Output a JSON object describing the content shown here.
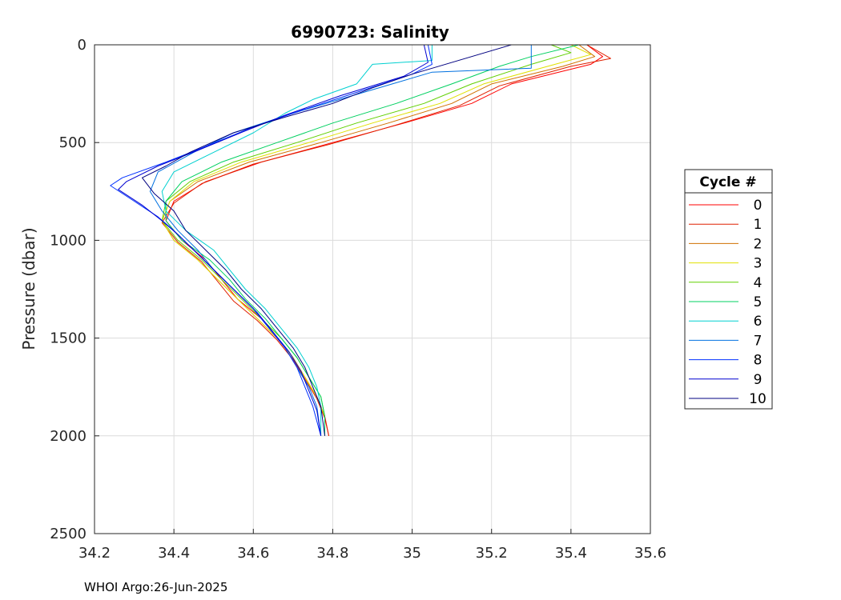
{
  "chart_data": {
    "type": "line",
    "title": "6990723:  Salinity",
    "xlabel": "",
    "ylabel": "Pressure (dbar)",
    "xlim": [
      34.2,
      35.6
    ],
    "ylim": [
      0,
      2500
    ],
    "y_reversed": true,
    "grid": true,
    "xticks": [
      "34.2",
      "34.4",
      "34.6",
      "34.8",
      "35",
      "35.2",
      "35.4",
      "35.6"
    ],
    "yticks": [
      "0",
      "500",
      "1000",
      "1500",
      "2000",
      "2500"
    ],
    "legend": {
      "title": "Cycle #",
      "placement": "right-outside"
    },
    "series": [
      {
        "name": "0",
        "color": "#ff0000",
        "points": [
          [
            35.44,
            0
          ],
          [
            35.48,
            60
          ],
          [
            35.45,
            100
          ],
          [
            35.25,
            200
          ],
          [
            35.15,
            300
          ],
          [
            34.98,
            400
          ],
          [
            34.8,
            500
          ],
          [
            34.62,
            600
          ],
          [
            34.48,
            700
          ],
          [
            34.4,
            800
          ],
          [
            34.38,
            900
          ],
          [
            34.42,
            1000
          ],
          [
            34.48,
            1100
          ],
          [
            34.52,
            1200
          ],
          [
            34.56,
            1300
          ],
          [
            34.62,
            1400
          ],
          [
            34.66,
            1500
          ],
          [
            34.7,
            1600
          ],
          [
            34.73,
            1700
          ],
          [
            34.76,
            1800
          ],
          [
            34.78,
            1900
          ],
          [
            34.79,
            2000
          ]
        ]
      },
      {
        "name": "1",
        "color": "#e02000",
        "points": [
          [
            35.44,
            0
          ],
          [
            35.5,
            70
          ],
          [
            35.4,
            110
          ],
          [
            35.22,
            210
          ],
          [
            35.12,
            310
          ],
          [
            34.96,
            410
          ],
          [
            34.79,
            510
          ],
          [
            34.6,
            610
          ],
          [
            34.47,
            710
          ],
          [
            34.4,
            810
          ],
          [
            34.37,
            910
          ],
          [
            34.41,
            1010
          ],
          [
            34.47,
            1110
          ],
          [
            34.51,
            1210
          ],
          [
            34.55,
            1310
          ],
          [
            34.61,
            1410
          ],
          [
            34.66,
            1510
          ],
          [
            34.7,
            1610
          ],
          [
            34.73,
            1710
          ],
          [
            34.76,
            1810
          ],
          [
            34.78,
            1910
          ],
          [
            34.79,
            2000
          ]
        ]
      },
      {
        "name": "2",
        "color": "#d07000",
        "points": [
          [
            35.42,
            0
          ],
          [
            35.46,
            60
          ],
          [
            35.38,
            110
          ],
          [
            35.2,
            200
          ],
          [
            35.1,
            300
          ],
          [
            34.94,
            400
          ],
          [
            34.77,
            500
          ],
          [
            34.59,
            600
          ],
          [
            34.46,
            700
          ],
          [
            34.39,
            800
          ],
          [
            34.37,
            900
          ],
          [
            34.4,
            1000
          ],
          [
            34.46,
            1100
          ],
          [
            34.51,
            1200
          ],
          [
            34.56,
            1300
          ],
          [
            34.61,
            1400
          ],
          [
            34.66,
            1500
          ],
          [
            34.7,
            1600
          ],
          [
            34.73,
            1700
          ],
          [
            34.76,
            1800
          ],
          [
            34.78,
            1900
          ],
          [
            34.78,
            2000
          ]
        ]
      },
      {
        "name": "3",
        "color": "#e0e000",
        "points": [
          [
            35.4,
            0
          ],
          [
            35.45,
            50
          ],
          [
            35.36,
            100
          ],
          [
            35.18,
            200
          ],
          [
            35.07,
            300
          ],
          [
            34.9,
            400
          ],
          [
            34.74,
            500
          ],
          [
            34.57,
            600
          ],
          [
            34.45,
            700
          ],
          [
            34.39,
            800
          ],
          [
            34.37,
            900
          ],
          [
            34.4,
            1000
          ],
          [
            34.46,
            1100
          ],
          [
            34.51,
            1200
          ],
          [
            34.56,
            1300
          ],
          [
            34.61,
            1400
          ],
          [
            34.66,
            1500
          ],
          [
            34.7,
            1600
          ],
          [
            34.73,
            1700
          ],
          [
            34.76,
            1800
          ],
          [
            34.78,
            1900
          ],
          [
            34.78,
            2000
          ]
        ]
      },
      {
        "name": "4",
        "color": "#60d000",
        "points": [
          [
            35.35,
            0
          ],
          [
            35.4,
            40
          ],
          [
            35.3,
            100
          ],
          [
            35.15,
            200
          ],
          [
            35.03,
            300
          ],
          [
            34.86,
            400
          ],
          [
            34.71,
            500
          ],
          [
            34.55,
            600
          ],
          [
            34.44,
            700
          ],
          [
            34.38,
            800
          ],
          [
            34.37,
            900
          ],
          [
            34.41,
            1000
          ],
          [
            34.47,
            1100
          ],
          [
            34.52,
            1200
          ],
          [
            34.57,
            1300
          ],
          [
            34.62,
            1400
          ],
          [
            34.67,
            1500
          ],
          [
            34.71,
            1600
          ],
          [
            34.74,
            1700
          ],
          [
            34.77,
            1800
          ],
          [
            34.78,
            1900
          ],
          [
            34.78,
            2000
          ]
        ]
      },
      {
        "name": "5",
        "color": "#00d060",
        "points": [
          [
            35.42,
            0
          ],
          [
            35.3,
            60
          ],
          [
            35.22,
            110
          ],
          [
            35.1,
            200
          ],
          [
            34.96,
            300
          ],
          [
            34.8,
            400
          ],
          [
            34.66,
            500
          ],
          [
            34.52,
            600
          ],
          [
            34.42,
            700
          ],
          [
            34.38,
            800
          ],
          [
            34.38,
            900
          ],
          [
            34.42,
            1000
          ],
          [
            34.49,
            1100
          ],
          [
            34.54,
            1200
          ],
          [
            34.58,
            1300
          ],
          [
            34.63,
            1400
          ],
          [
            34.67,
            1500
          ],
          [
            34.71,
            1600
          ],
          [
            34.74,
            1700
          ],
          [
            34.77,
            1800
          ],
          [
            34.78,
            1900
          ],
          [
            34.78,
            2000
          ]
        ]
      },
      {
        "name": "6",
        "color": "#00d0d0",
        "points": [
          [
            35.05,
            0
          ],
          [
            35.05,
            80
          ],
          [
            34.9,
            100
          ],
          [
            34.86,
            200
          ],
          [
            34.75,
            280
          ],
          [
            34.68,
            350
          ],
          [
            34.6,
            450
          ],
          [
            34.5,
            550
          ],
          [
            34.4,
            650
          ],
          [
            34.37,
            750
          ],
          [
            34.38,
            850
          ],
          [
            34.43,
            950
          ],
          [
            34.5,
            1050
          ],
          [
            34.54,
            1150
          ],
          [
            34.58,
            1250
          ],
          [
            34.63,
            1350
          ],
          [
            34.67,
            1450
          ],
          [
            34.71,
            1550
          ],
          [
            34.74,
            1650
          ],
          [
            34.76,
            1750
          ],
          [
            34.77,
            1850
          ],
          [
            34.77,
            2000
          ]
        ]
      },
      {
        "name": "7",
        "color": "#0070e0",
        "points": [
          [
            35.3,
            0
          ],
          [
            35.3,
            120
          ],
          [
            35.05,
            140
          ],
          [
            34.95,
            200
          ],
          [
            34.85,
            260
          ],
          [
            34.7,
            350
          ],
          [
            34.55,
            450
          ],
          [
            34.45,
            550
          ],
          [
            34.36,
            650
          ],
          [
            34.34,
            750
          ],
          [
            34.37,
            850
          ],
          [
            34.41,
            950
          ],
          [
            34.46,
            1050
          ],
          [
            34.5,
            1150
          ],
          [
            34.55,
            1250
          ],
          [
            34.6,
            1350
          ],
          [
            34.64,
            1450
          ],
          [
            34.68,
            1550
          ],
          [
            34.71,
            1650
          ],
          [
            34.74,
            1750
          ],
          [
            34.76,
            1850
          ],
          [
            34.77,
            2000
          ]
        ]
      },
      {
        "name": "8",
        "color": "#0030ff",
        "points": [
          [
            35.04,
            0
          ],
          [
            35.05,
            100
          ],
          [
            35.0,
            150
          ],
          [
            34.85,
            250
          ],
          [
            34.7,
            350
          ],
          [
            34.6,
            420
          ],
          [
            34.48,
            520
          ],
          [
            34.38,
            600
          ],
          [
            34.27,
            680
          ],
          [
            34.24,
            720
          ],
          [
            34.3,
            800
          ],
          [
            34.36,
            880
          ],
          [
            34.4,
            950
          ],
          [
            34.45,
            1050
          ],
          [
            34.5,
            1150
          ],
          [
            34.55,
            1250
          ],
          [
            34.6,
            1350
          ],
          [
            34.64,
            1450
          ],
          [
            34.68,
            1550
          ],
          [
            34.71,
            1650
          ],
          [
            34.73,
            1750
          ],
          [
            34.75,
            1850
          ],
          [
            34.77,
            2000
          ]
        ]
      },
      {
        "name": "9",
        "color": "#0000d0",
        "points": [
          [
            35.03,
            0
          ],
          [
            35.04,
            90
          ],
          [
            34.98,
            160
          ],
          [
            34.82,
            260
          ],
          [
            34.68,
            360
          ],
          [
            34.58,
            440
          ],
          [
            34.46,
            540
          ],
          [
            34.36,
            620
          ],
          [
            34.28,
            700
          ],
          [
            34.26,
            740
          ],
          [
            34.32,
            820
          ],
          [
            34.37,
            900
          ],
          [
            34.41,
            970
          ],
          [
            34.46,
            1070
          ],
          [
            34.51,
            1170
          ],
          [
            34.56,
            1270
          ],
          [
            34.61,
            1370
          ],
          [
            34.65,
            1470
          ],
          [
            34.69,
            1570
          ],
          [
            34.72,
            1670
          ],
          [
            34.74,
            1770
          ],
          [
            34.76,
            1870
          ],
          [
            34.77,
            2000
          ]
        ]
      },
      {
        "name": "10",
        "color": "#000080",
        "points": [
          [
            35.25,
            0
          ],
          [
            35.0,
            150
          ],
          [
            34.9,
            220
          ],
          [
            34.8,
            300
          ],
          [
            34.68,
            370
          ],
          [
            34.55,
            450
          ],
          [
            34.44,
            550
          ],
          [
            34.38,
            620
          ],
          [
            34.32,
            680
          ],
          [
            34.35,
            760
          ],
          [
            34.4,
            850
          ],
          [
            34.43,
            950
          ],
          [
            34.48,
            1050
          ],
          [
            34.53,
            1150
          ],
          [
            34.57,
            1250
          ],
          [
            34.62,
            1350
          ],
          [
            34.66,
            1450
          ],
          [
            34.7,
            1550
          ],
          [
            34.73,
            1650
          ],
          [
            34.75,
            1750
          ],
          [
            34.77,
            1850
          ],
          [
            34.78,
            2000
          ]
        ]
      }
    ]
  },
  "footer": "WHOI Argo:26-Jun-2025"
}
